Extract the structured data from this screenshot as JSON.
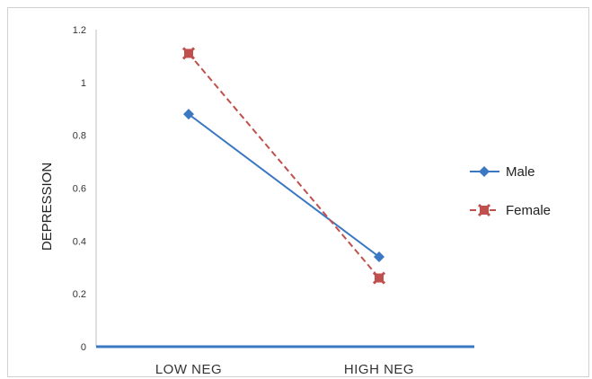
{
  "chart_data": {
    "type": "line",
    "categories": [
      "LOW NEG",
      "HIGH NEG"
    ],
    "ylabel": "DEPRESSION",
    "xlabel": "",
    "ylim": [
      0,
      1.2
    ],
    "yticks": [
      "0",
      "0.2",
      "0.4",
      "0.6",
      "0.8",
      "1",
      "1.2"
    ],
    "legend_position": "right",
    "grid": false,
    "series": [
      {
        "name": "Male",
        "values": [
          0.88,
          0.34
        ],
        "color": "#3A78C3",
        "line_style": "solid",
        "marker": "diamond"
      },
      {
        "name": "Female",
        "values": [
          1.11,
          0.26
        ],
        "color": "#C0504D",
        "line_style": "dashed",
        "marker": "square-x"
      }
    ]
  }
}
